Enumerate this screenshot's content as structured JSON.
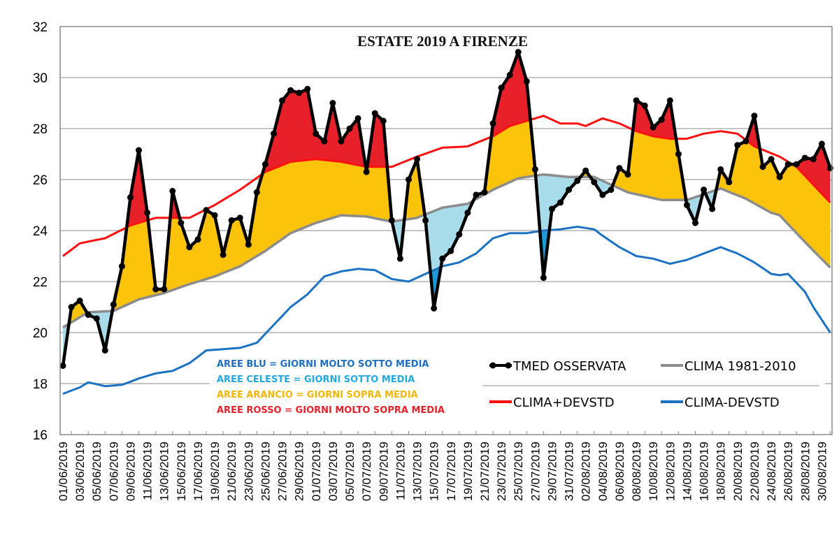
{
  "chart_data": {
    "type": "line",
    "title": "ESTATE 2019 A FIRENZE",
    "xlabel": "",
    "ylabel": "",
    "ylim": [
      16,
      32
    ],
    "yticks": [
      "16",
      "18",
      "20",
      "22",
      "24",
      "26",
      "28",
      "30",
      "32"
    ],
    "grid": true,
    "x_tick_labels": [
      "01/06/2019",
      "03/06/2019",
      "05/06/2019",
      "07/06/2019",
      "09/06/2019",
      "11/06/2019",
      "13/06/2019",
      "15/06/2019",
      "17/06/2019",
      "19/06/2019",
      "21/06/2019",
      "23/06/2019",
      "25/06/2019",
      "27/06/2019",
      "29/06/2019",
      "01/07/2019",
      "03/07/2019",
      "05/07/2019",
      "07/07/2019",
      "09/07/2019",
      "11/07/2019",
      "13/07/2019",
      "15/07/2019",
      "17/07/2019",
      "19/07/2019",
      "21/07/2019",
      "23/07/2019",
      "25/07/2019",
      "27/07/2019",
      "29/07/2019",
      "31/07/2019",
      "02/08/2019",
      "04/08/2019",
      "06/08/2019",
      "08/08/2019",
      "10/08/2019",
      "12/08/2019",
      "14/08/2019",
      "16/08/2019",
      "18/08/2019",
      "20/08/2019",
      "22/08/2019",
      "24/08/2019",
      "26/08/2019",
      "28/08/2019",
      "30/08/2019"
    ],
    "x_range_days": "01/06/2019 - 31/08/2019",
    "series": [
      {
        "name": "TMED OSSERVATA",
        "color": "#000000",
        "values": [
          18.7,
          21.0,
          21.25,
          20.7,
          20.55,
          19.3,
          21.1,
          22.6,
          25.3,
          27.15,
          24.7,
          21.7,
          21.7,
          25.55,
          24.3,
          23.35,
          23.65,
          24.8,
          24.6,
          23.05,
          24.4,
          24.5,
          23.45,
          25.5,
          26.6,
          27.8,
          29.1,
          29.5,
          29.4,
          29.55,
          27.8,
          27.5,
          29.0,
          27.5,
          28.0,
          28.4,
          26.3,
          28.6,
          28.3,
          24.4,
          22.9,
          26.0,
          26.8,
          24.4,
          20.95,
          22.9,
          23.2,
          23.85,
          24.7,
          25.4,
          25.5,
          28.2,
          29.6,
          30.1,
          31.0,
          29.85,
          26.4,
          22.15,
          24.85,
          25.1,
          25.6,
          25.95,
          26.35,
          25.9,
          25.4,
          25.6,
          26.45,
          26.2,
          29.1,
          28.9,
          28.05,
          28.35,
          29.1,
          27.0,
          25.0,
          24.3,
          25.6,
          24.85,
          26.4,
          25.9,
          27.35,
          27.5,
          28.5,
          26.5,
          26.8,
          26.1,
          26.6,
          26.6,
          26.85,
          26.8,
          27.4,
          26.45
        ]
      },
      {
        "name": "CLIMA 1981-2010",
        "color": "#8c8c8c",
        "points": [
          [
            0,
            20.2
          ],
          [
            3,
            20.8
          ],
          [
            6,
            20.85
          ],
          [
            9,
            21.3
          ],
          [
            12,
            21.55
          ],
          [
            15,
            21.9
          ],
          [
            18,
            22.2
          ],
          [
            21,
            22.6
          ],
          [
            24,
            23.2
          ],
          [
            27,
            23.9
          ],
          [
            30,
            24.3
          ],
          [
            33,
            24.6
          ],
          [
            36,
            24.55
          ],
          [
            39,
            24.35
          ],
          [
            42,
            24.5
          ],
          [
            45,
            24.9
          ],
          [
            48,
            25.05
          ],
          [
            51,
            25.6
          ],
          [
            54,
            26.05
          ],
          [
            57,
            26.2
          ],
          [
            60,
            26.1
          ],
          [
            63,
            26.1
          ],
          [
            67,
            25.5
          ],
          [
            71,
            25.2
          ],
          [
            74,
            25.2
          ],
          [
            78,
            25.65
          ],
          [
            81,
            25.25
          ],
          [
            84,
            24.7
          ],
          [
            85,
            24.6
          ],
          [
            88,
            23.55
          ],
          [
            91,
            22.55
          ]
        ]
      },
      {
        "name": "CLIMA+DEVSTD",
        "color": "#ff1010",
        "points": [
          [
            0,
            23.0
          ],
          [
            2,
            23.5
          ],
          [
            5,
            23.7
          ],
          [
            8,
            24.2
          ],
          [
            11,
            24.5
          ],
          [
            15,
            24.5
          ],
          [
            18,
            25.0
          ],
          [
            21,
            25.6
          ],
          [
            24,
            26.3
          ],
          [
            27,
            26.7
          ],
          [
            30,
            26.8
          ],
          [
            33,
            26.7
          ],
          [
            36,
            26.5
          ],
          [
            39,
            26.5
          ],
          [
            42,
            26.9
          ],
          [
            45,
            27.25
          ],
          [
            48,
            27.3
          ],
          [
            51,
            27.7
          ],
          [
            53,
            28.1
          ],
          [
            55,
            28.3
          ],
          [
            57,
            28.5
          ],
          [
            59,
            28.2
          ],
          [
            61,
            28.2
          ],
          [
            62,
            28.1
          ],
          [
            64,
            28.4
          ],
          [
            66,
            28.2
          ],
          [
            68,
            27.9
          ],
          [
            70,
            27.7
          ],
          [
            72,
            27.6
          ],
          [
            74,
            27.6
          ],
          [
            76,
            27.8
          ],
          [
            78,
            27.9
          ],
          [
            80,
            27.8
          ],
          [
            82,
            27.3
          ],
          [
            85,
            26.9
          ],
          [
            87,
            26.5
          ],
          [
            89,
            25.8
          ],
          [
            91,
            25.1
          ]
        ]
      },
      {
        "name": "CLIMA-DEVSTD",
        "color": "#1b72c4",
        "points": [
          [
            0,
            17.6
          ],
          [
            2,
            17.85
          ],
          [
            3,
            18.05
          ],
          [
            5,
            17.9
          ],
          [
            7,
            17.95
          ],
          [
            9,
            18.2
          ],
          [
            11,
            18.4
          ],
          [
            13,
            18.5
          ],
          [
            15,
            18.8
          ],
          [
            17,
            19.3
          ],
          [
            19,
            19.35
          ],
          [
            21,
            19.4
          ],
          [
            23,
            19.6
          ],
          [
            25,
            20.3
          ],
          [
            27,
            21.0
          ],
          [
            29,
            21.5
          ],
          [
            31,
            22.2
          ],
          [
            33,
            22.4
          ],
          [
            35,
            22.5
          ],
          [
            37,
            22.45
          ],
          [
            39,
            22.1
          ],
          [
            41,
            22.0
          ],
          [
            43,
            22.3
          ],
          [
            45,
            22.6
          ],
          [
            47,
            22.75
          ],
          [
            49,
            23.1
          ],
          [
            51,
            23.7
          ],
          [
            53,
            23.9
          ],
          [
            55,
            23.9
          ],
          [
            57,
            24.0
          ],
          [
            59,
            24.05
          ],
          [
            61,
            24.15
          ],
          [
            63,
            24.05
          ],
          [
            64,
            23.8
          ],
          [
            66,
            23.35
          ],
          [
            68,
            23.0
          ],
          [
            70,
            22.9
          ],
          [
            72,
            22.7
          ],
          [
            74,
            22.85
          ],
          [
            76,
            23.1
          ],
          [
            78,
            23.35
          ],
          [
            80,
            23.1
          ],
          [
            82,
            22.75
          ],
          [
            84,
            22.3
          ],
          [
            85,
            22.25
          ],
          [
            86,
            22.3
          ],
          [
            88,
            21.6
          ],
          [
            89,
            21.0
          ],
          [
            91,
            20.0
          ]
        ]
      }
    ],
    "area_notes": [
      {
        "text": "AREE BLU = GIORNI MOLTO SOTTO MEDIA",
        "color": "#1f6fc0"
      },
      {
        "text": "AREE CELESTE = GIORNI SOTTO MEDIA",
        "color": "#22a9e1"
      },
      {
        "text": "AREE ARANCIO = GIORNI SOPRA MEDIA",
        "color": "#f2b705"
      },
      {
        "text": "AREE ROSSO = GIORNI MOLTO SOPRA MEDIA",
        "color": "#e5222a"
      }
    ],
    "area_colors": {
      "molto_sopra": "#e8202a",
      "sopra": "#fcc30b",
      "sotto": "#a8dcea",
      "molto_sotto": "#1e9ad8"
    },
    "legend_placement": "bottom-right inside plot"
  }
}
